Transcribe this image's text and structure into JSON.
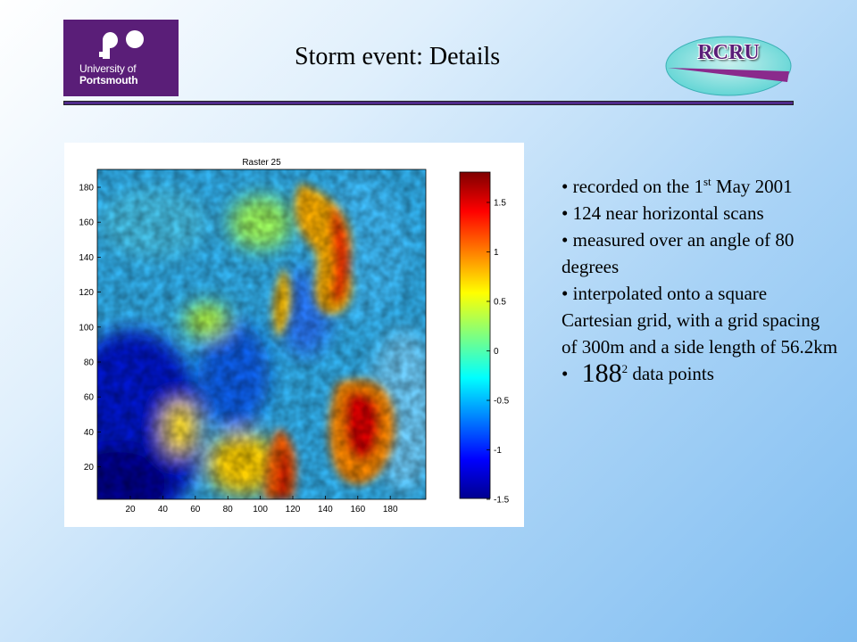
{
  "header": {
    "title": "Storm event: Details",
    "logo_left": {
      "line1": "University of",
      "line2": "Portsmouth"
    },
    "logo_right": {
      "text": "RCRU"
    }
  },
  "figure": {
    "title": "Raster 25",
    "x_ticks": [
      "20",
      "40",
      "60",
      "80",
      "100",
      "120",
      "140",
      "160",
      "180"
    ],
    "y_ticks": [
      "180",
      "160",
      "140",
      "120",
      "100",
      "80",
      "60",
      "40",
      "20"
    ],
    "colorbar_ticks": [
      "1.5",
      "1",
      "0.5",
      "0",
      "-0.5",
      "-1",
      "-1.5"
    ]
  },
  "bullets": {
    "b1_pre": "recorded on the 1",
    "b1_sup": "st",
    "b1_post": " May 2001",
    "b2": "124 near horizontal scans",
    "b3": "measured over an angle of 80 degrees",
    "b4": "interpolated onto a square Cartesian grid, with a grid spacing of 300m and a side length of 56.2km",
    "b5_base": "188",
    "b5_sup": "2",
    "b5_post": " data points"
  },
  "colors": {
    "accent_purple": "#5a1e78",
    "rule": "#4f2a8a",
    "background_blue": "#7fbdf1"
  }
}
